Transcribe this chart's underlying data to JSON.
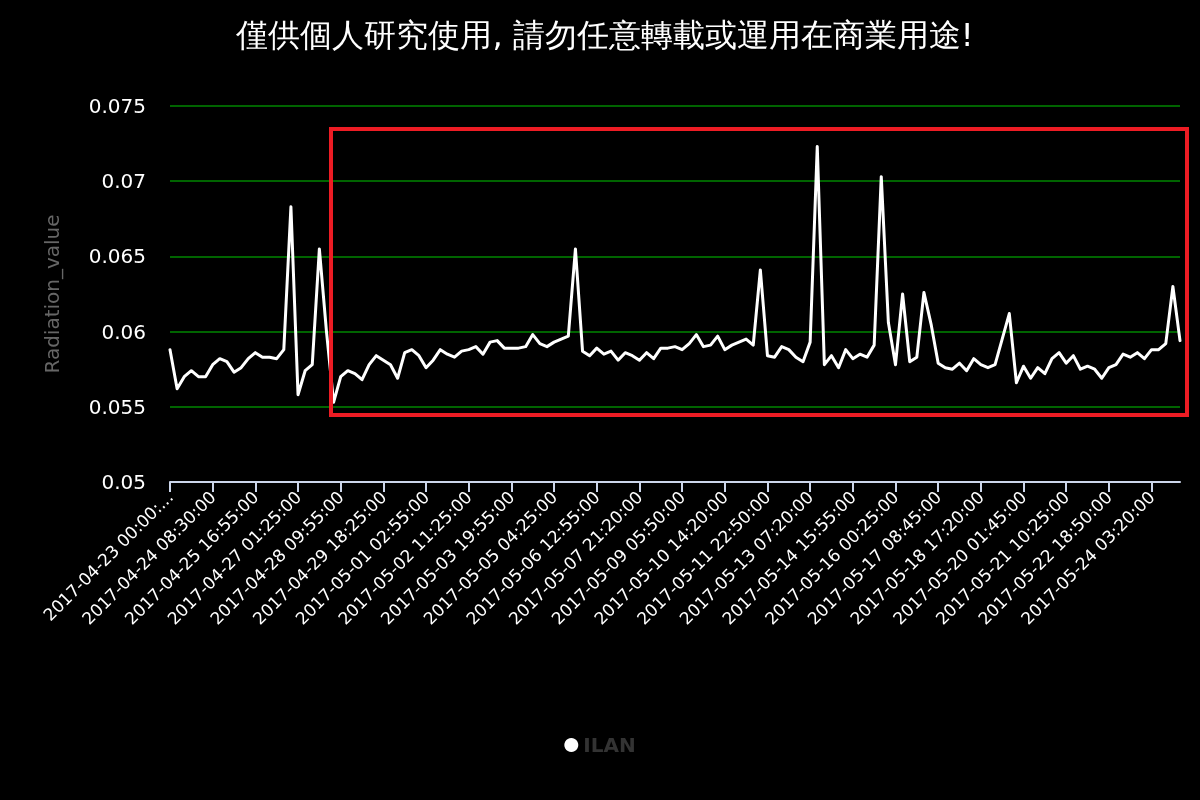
{
  "chart_data": {
    "type": "line",
    "title": "僅供個人研究使用, 請勿任意轉載或運用在商業用途!",
    "ylabel": "Radiation_value",
    "categories": [
      "2017-04-23 00:00:...",
      null,
      null,
      null,
      null,
      null,
      "2017-04-24 08:30:00",
      null,
      null,
      null,
      null,
      null,
      "2017-04-25 16:55:00",
      null,
      null,
      null,
      null,
      null,
      "2017-04-27 01:25:00",
      null,
      null,
      null,
      null,
      null,
      "2017-04-28 09:55:00",
      null,
      null,
      null,
      null,
      null,
      "2017-04-29 18:25:00",
      null,
      null,
      null,
      null,
      null,
      "2017-05-01 02:55:00",
      null,
      null,
      null,
      null,
      null,
      "2017-05-02 11:25:00",
      null,
      null,
      null,
      null,
      null,
      "2017-05-03 19:55:00",
      null,
      null,
      null,
      null,
      null,
      "2017-05-05 04:25:00",
      null,
      null,
      null,
      null,
      null,
      "2017-05-06 12:55:00",
      null,
      null,
      null,
      null,
      null,
      "2017-05-07 21:20:00",
      null,
      null,
      null,
      null,
      null,
      "2017-05-09 05:50:00",
      null,
      null,
      null,
      null,
      null,
      "2017-05-10 14:20:00",
      null,
      null,
      null,
      null,
      null,
      "2017-05-11 22:50:00",
      null,
      null,
      null,
      null,
      null,
      "2017-05-13 07:20:00",
      null,
      null,
      null,
      null,
      null,
      "2017-05-14 15:55:00",
      null,
      null,
      null,
      null,
      null,
      "2017-05-16 00:25:00",
      null,
      null,
      null,
      null,
      null,
      "2017-05-17 08:45:00",
      null,
      null,
      null,
      null,
      null,
      "2017-05-18 17:20:00",
      null,
      null,
      null,
      null,
      null,
      "2017-05-20 01:45:00",
      null,
      null,
      null,
      null,
      null,
      "2017-05-21 10:25:00",
      null,
      null,
      null,
      null,
      null,
      "2017-05-22 18:50:00",
      null,
      null,
      null,
      null,
      null,
      "2017-05-24 03:20:00",
      null,
      null,
      null,
      null
    ],
    "series": [
      {
        "name": "ILAN",
        "color": "#ffffff",
        "values": [
          0.0588,
          0.0562,
          0.057,
          0.0574,
          0.057,
          0.057,
          0.0578,
          0.0582,
          0.058,
          0.0573,
          0.0576,
          0.0582,
          0.0586,
          0.0583,
          0.0583,
          0.0582,
          0.0588,
          0.0683,
          0.0558,
          0.0574,
          0.0578,
          0.0655,
          0.06,
          0.0553,
          0.057,
          0.0574,
          0.0572,
          0.0568,
          0.0578,
          0.0584,
          0.0581,
          0.0578,
          0.0569,
          0.0586,
          0.0588,
          0.0584,
          0.0576,
          0.0581,
          0.0588,
          0.0585,
          0.0583,
          0.0587,
          0.0588,
          0.059,
          0.0585,
          0.0593,
          0.0594,
          0.0589,
          0.0589,
          0.0589,
          0.059,
          0.0598,
          0.0592,
          0.059,
          0.0593,
          0.0595,
          0.0597,
          0.0655,
          0.0587,
          0.0584,
          0.0589,
          0.0585,
          0.0587,
          0.0581,
          0.0586,
          0.0584,
          0.0581,
          0.0586,
          0.0582,
          0.0589,
          0.0589,
          0.059,
          0.0588,
          0.0592,
          0.0598,
          0.059,
          0.0591,
          0.0597,
          0.0588,
          0.0591,
          0.0593,
          0.0595,
          0.0591,
          0.0641,
          0.0584,
          0.0583,
          0.059,
          0.0588,
          0.0583,
          0.058,
          0.0593,
          0.0723,
          0.0578,
          0.0584,
          0.0576,
          0.0588,
          0.0582,
          0.0585,
          0.0583,
          0.0591,
          0.0703,
          0.0606,
          0.0578,
          0.0625,
          0.058,
          0.0583,
          0.0626,
          0.0605,
          0.0579,
          0.0576,
          0.0575,
          0.0579,
          0.0574,
          0.0582,
          0.0578,
          0.0576,
          0.0578,
          0.0595,
          0.0612,
          0.0566,
          0.0577,
          0.0569,
          0.0576,
          0.0572,
          0.0582,
          0.0586,
          0.0579,
          0.0584,
          0.0575,
          0.0577,
          0.0575,
          0.0569,
          0.0576,
          0.0578,
          0.0585,
          0.0583,
          0.0586,
          0.0582,
          0.0588,
          0.0588,
          0.0592,
          0.063,
          0.0594
        ]
      }
    ],
    "ylim": [
      0.05,
      0.075
    ],
    "yticks": [
      0.05,
      0.055,
      0.06,
      0.065,
      0.07,
      0.075
    ],
    "grid": "y",
    "legend": "bottom",
    "marker": "none",
    "line_style": "solid"
  }
}
